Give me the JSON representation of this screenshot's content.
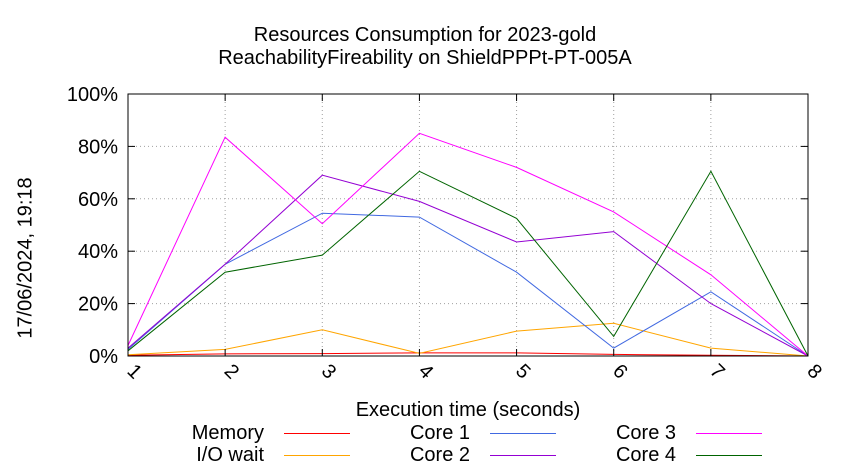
{
  "chart_data": {
    "type": "line",
    "title_lines": [
      "Resources Consumption for 2023-gold",
      "ReachabilityFireability on ShieldPPPt-PT-005A"
    ],
    "xlabel": "Execution time (seconds)",
    "ylabel": "",
    "side_label": "17/06/2024, 19:18",
    "x": [
      1,
      2,
      3,
      4,
      5,
      6,
      7,
      8
    ],
    "xlim": [
      1,
      8
    ],
    "ylim": [
      0,
      100
    ],
    "x_tick_labels": [
      "1",
      "2",
      "3",
      "4",
      "5",
      "6",
      "7",
      "8"
    ],
    "y_ticks": [
      0,
      20,
      40,
      60,
      80,
      100
    ],
    "y_tick_labels": [
      "0%",
      "20%",
      "40%",
      "60%",
      "80%",
      "100%"
    ],
    "grid": true,
    "legend_position": "bottom",
    "series": [
      {
        "name": "Memory",
        "color": "#ff0000",
        "values": [
          0.3,
          0.8,
          0.9,
          1.2,
          1.2,
          0.6,
          0.3,
          0
        ]
      },
      {
        "name": "I/O wait",
        "color": "#ffa500",
        "values": [
          0.5,
          2.5,
          10,
          1,
          9.5,
          12.5,
          3,
          0
        ]
      },
      {
        "name": "Core 1",
        "color": "#4169e1",
        "values": [
          2.5,
          35,
          54.5,
          53,
          32,
          3,
          24.5,
          0
        ]
      },
      {
        "name": "Core 2",
        "color": "#9400d3",
        "values": [
          3,
          35,
          69,
          59,
          43.5,
          47.5,
          20,
          0
        ]
      },
      {
        "name": "Core 3",
        "color": "#ff00ff",
        "values": [
          4,
          83.5,
          50.5,
          85,
          72,
          55,
          31,
          0
        ]
      },
      {
        "name": "Core 4",
        "color": "#006400",
        "values": [
          2,
          32,
          38.5,
          70.5,
          52.5,
          7.5,
          70.5,
          0
        ]
      }
    ]
  }
}
